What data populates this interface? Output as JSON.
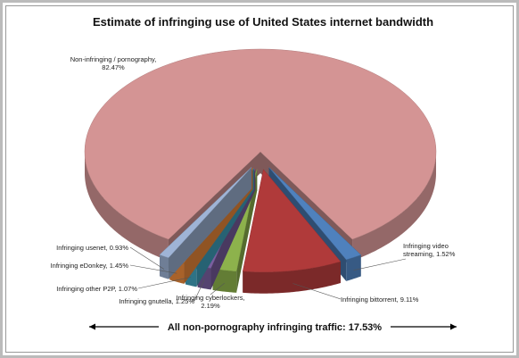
{
  "chart_data": {
    "type": "pie",
    "title": "Estimate of infringing use of United States internet bandwidth",
    "value_labels": [
      "Infringing video streaming, 1.52%",
      "Infringing bittorrent, 9.11%",
      "Infringing cyberlockers, 2.19%",
      "Infringing gnutella, 1.25%",
      "Infringing other P2P, 1.07%",
      "Infringing eDonkey, 1.45%",
      "Infringing usenet, 0.93%",
      "Non-infringing / pornography, 82.47%"
    ],
    "values": [
      1.52,
      9.11,
      2.19,
      1.25,
      1.07,
      1.45,
      0.93,
      82.47
    ],
    "colors": [
      "#4f81bd",
      "#b03a3a",
      "#8db24c",
      "#7a5fa0",
      "#41a4bf",
      "#f08c3c",
      "#9fb4d6",
      "#d49494"
    ],
    "annotation": "All non-pornography infringing traffic: 17.53%"
  }
}
